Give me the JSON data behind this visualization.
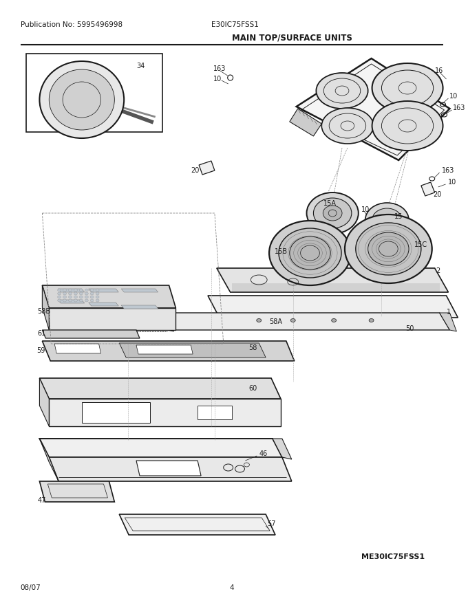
{
  "title": "MAIN TOP/SURFACE UNITS",
  "pub_no": "Publication No: 5995496998",
  "model": "E30IC75FSS1",
  "bottom_model": "ME30IC75FSS1",
  "date": "08/07",
  "page": "4",
  "bg_color": "#ffffff",
  "lc": "#1a1a1a",
  "gray_light": "#cccccc",
  "gray_mid": "#aaaaaa",
  "gray_dark": "#888888",
  "fs_title": 8.5,
  "fs_header": 7,
  "fs_label": 7
}
